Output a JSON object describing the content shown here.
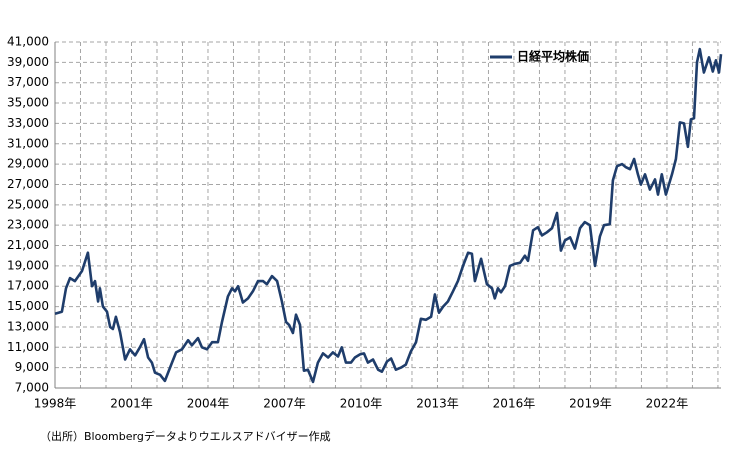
{
  "chart_data": {
    "type": "line",
    "x": [
      1998.0,
      1998.27,
      1998.43,
      1998.59,
      1998.78,
      1999.06,
      1999.29,
      1999.45,
      1999.57,
      1999.69,
      1999.76,
      1999.88,
      2000.04,
      2000.16,
      2000.27,
      2000.39,
      2000.55,
      2000.75,
      2000.94,
      2001.14,
      2001.33,
      2001.49,
      2001.65,
      2001.8,
      2001.92,
      2002.12,
      2002.31,
      2002.59,
      2002.75,
      2002.98,
      2003.22,
      2003.37,
      2003.61,
      2003.76,
      2003.96,
      2004.16,
      2004.39,
      2004.55,
      2004.78,
      2004.94,
      2005.06,
      2005.18,
      2005.37,
      2005.57,
      2005.76,
      2005.96,
      2006.16,
      2006.31,
      2006.51,
      2006.71,
      2006.9,
      2007.06,
      2007.18,
      2007.33,
      2007.45,
      2007.61,
      2007.76,
      2007.92,
      2008.12,
      2008.31,
      2008.51,
      2008.71,
      2008.9,
      2009.1,
      2009.25,
      2009.41,
      2009.61,
      2009.76,
      2009.96,
      2010.12,
      2010.27,
      2010.47,
      2010.67,
      2010.82,
      2011.02,
      2011.18,
      2011.37,
      2011.57,
      2011.76,
      2011.96,
      2012.16,
      2012.35,
      2012.55,
      2012.75,
      2012.9,
      2013.06,
      2013.22,
      2013.41,
      2013.61,
      2013.8,
      2014.0,
      2014.2,
      2014.35,
      2014.47,
      2014.71,
      2014.94,
      2015.14,
      2015.25,
      2015.37,
      2015.49,
      2015.65,
      2015.84,
      2016.04,
      2016.24,
      2016.43,
      2016.55,
      2016.75,
      2016.94,
      2017.1,
      2017.29,
      2017.49,
      2017.69,
      2017.84,
      2018.0,
      2018.2,
      2018.39,
      2018.59,
      2018.78,
      2018.98,
      2019.18,
      2019.37,
      2019.53,
      2019.76,
      2019.88,
      2020.04,
      2020.24,
      2020.39,
      2020.55,
      2020.71,
      2020.86,
      2020.98,
      2021.14,
      2021.33,
      2021.53,
      2021.65,
      2021.8,
      2021.96,
      2022.2,
      2022.35,
      2022.51,
      2022.67,
      2022.82,
      2022.94,
      2023.06,
      2023.18,
      2023.29,
      2023.45,
      2023.65,
      2023.8,
      2023.92,
      2024.04,
      2024.12
    ],
    "series": [
      {
        "name": "日経平均株価",
        "color": "#1f3d6b",
        "values": [
          14300,
          14500,
          16800,
          17800,
          17500,
          18500,
          20300,
          17000,
          17500,
          15500,
          16800,
          15000,
          14500,
          13000,
          12800,
          14000,
          12500,
          9800,
          10800,
          10200,
          11000,
          11800,
          10000,
          9500,
          8500,
          8300,
          7700,
          9500,
          10500,
          10800,
          11700,
          11200,
          11900,
          11000,
          10800,
          11500,
          11500,
          13500,
          16000,
          16800,
          16500,
          17000,
          15400,
          15800,
          16500,
          17500,
          17500,
          17200,
          18000,
          17500,
          15500,
          13500,
          13200,
          12400,
          14200,
          13200,
          8700,
          8800,
          7600,
          9500,
          10400,
          10000,
          10500,
          10100,
          11000,
          9500,
          9500,
          10000,
          10300,
          10400,
          9500,
          9800,
          8800,
          8600,
          9600,
          9900,
          8800,
          9000,
          9300,
          10600,
          11500,
          13800,
          13700,
          14000,
          16200,
          14400,
          15000,
          15500,
          16500,
          17500,
          19000,
          20300,
          20200,
          17500,
          19700,
          17200,
          16800,
          15800,
          16800,
          16400,
          17000,
          19000,
          19200,
          19300,
          20000,
          19500,
          22500,
          22800,
          22000,
          22300,
          22700,
          24200,
          20500,
          21500,
          21800,
          20700,
          22700,
          23300,
          23000,
          19000,
          21900,
          23000,
          23100,
          27400,
          28800,
          29000,
          28700,
          28500,
          29500,
          28000,
          27000,
          28000,
          26500,
          27500,
          26000,
          28000,
          26000,
          28000,
          29500,
          33100,
          33000,
          30700,
          33400,
          33500,
          39000,
          40300,
          38000,
          39500,
          38100,
          39200,
          38000,
          39800
        ]
      }
    ],
    "xlim": [
      1998,
      2024.12
    ],
    "xticks": [
      {
        "value": 1998,
        "label": "1998年"
      },
      {
        "value": 2001,
        "label": "2001年"
      },
      {
        "value": 2004,
        "label": "2004年"
      },
      {
        "value": 2007,
        "label": "2007年"
      },
      {
        "value": 2010,
        "label": "2010年"
      },
      {
        "value": 2013,
        "label": "2013年"
      },
      {
        "value": 2016,
        "label": "2016年"
      },
      {
        "value": 2019,
        "label": "2019年"
      },
      {
        "value": 2022,
        "label": "2022年"
      }
    ],
    "xminorticks": [
      1999,
      2000,
      2002,
      2003,
      2005,
      2006,
      2008,
      2009,
      2011,
      2012,
      2014,
      2015,
      2017,
      2018,
      2020,
      2021,
      2023,
      2024
    ],
    "ylim": [
      7000,
      41000
    ],
    "yticks": [
      {
        "value": 7000,
        "label": "7,000"
      },
      {
        "value": 9000,
        "label": "9,000"
      },
      {
        "value": 11000,
        "label": "11,000"
      },
      {
        "value": 13000,
        "label": "13,000"
      },
      {
        "value": 15000,
        "label": "15,000"
      },
      {
        "value": 17000,
        "label": "17,000"
      },
      {
        "value": 19000,
        "label": "19,000"
      },
      {
        "value": 21000,
        "label": "21,000"
      },
      {
        "value": 23000,
        "label": "23,000"
      },
      {
        "value": 25000,
        "label": "25,000"
      },
      {
        "value": 27000,
        "label": "27,000"
      },
      {
        "value": 29000,
        "label": "29,000"
      },
      {
        "value": 31000,
        "label": "31,000"
      },
      {
        "value": 33000,
        "label": "33,000"
      },
      {
        "value": 35000,
        "label": "35,000"
      },
      {
        "value": 37000,
        "label": "37,000"
      },
      {
        "value": 39000,
        "label": "39,000"
      },
      {
        "value": 41000,
        "label": "41,000"
      }
    ],
    "grid": true,
    "legend": "upper right",
    "source": "（出所）Bloombergデータよりウエルスアドバイザー作成"
  }
}
